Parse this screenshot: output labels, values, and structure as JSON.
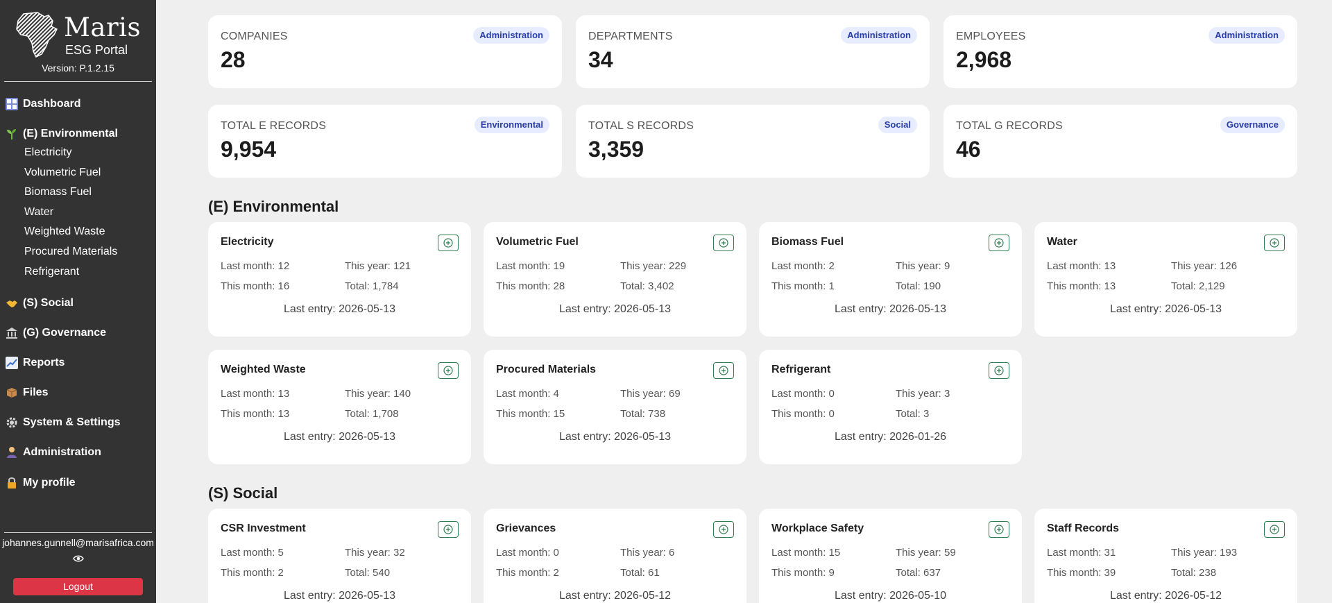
{
  "brand": {
    "name": "Maris",
    "subtitle": "ESG Portal",
    "version": "Version: P.1.2.15"
  },
  "nav": {
    "dashboard": "Dashboard",
    "environmental": "(E) Environmental",
    "env_items": [
      "Electricity",
      "Volumetric Fuel",
      "Biomass Fuel",
      "Water",
      "Weighted Waste",
      "Procured Materials",
      "Refrigerant"
    ],
    "social": "(S) Social",
    "governance": "(G) Governance",
    "reports": "Reports",
    "files": "Files",
    "settings": "System & Settings",
    "administration": "Administration",
    "profile": "My profile"
  },
  "user": {
    "email": "johannes.gunnell@marisafrica.com",
    "logout": "Logout"
  },
  "stats": [
    {
      "label": "COMPANIES",
      "value": "28",
      "badge": "Administration"
    },
    {
      "label": "DEPARTMENTS",
      "value": "34",
      "badge": "Administration"
    },
    {
      "label": "EMPLOYEES",
      "value": "2,968",
      "badge": "Administration"
    },
    {
      "label": "TOTAL E RECORDS",
      "value": "9,954",
      "badge": "Environmental"
    },
    {
      "label": "TOTAL S RECORDS",
      "value": "3,359",
      "badge": "Social"
    },
    {
      "label": "TOTAL G RECORDS",
      "value": "46",
      "badge": "Governance"
    }
  ],
  "sections": {
    "environmental": "(E) Environmental",
    "social": "(S) Social"
  },
  "env_cards": [
    {
      "title": "Electricity",
      "last_month": "Last month: 12",
      "this_year": "This year: 121",
      "this_month": "This month: 16",
      "total": "Total: 1,784",
      "last_entry": "Last entry: 2026-05-13"
    },
    {
      "title": "Volumetric Fuel",
      "last_month": "Last month: 19",
      "this_year": "This year: 229",
      "this_month": "This month: 28",
      "total": "Total: 3,402",
      "last_entry": "Last entry: 2026-05-13"
    },
    {
      "title": "Biomass Fuel",
      "last_month": "Last month: 2",
      "this_year": "This year: 9",
      "this_month": "This month: 1",
      "total": "Total: 190",
      "last_entry": "Last entry: 2026-05-13"
    },
    {
      "title": "Water",
      "last_month": "Last month: 13",
      "this_year": "This year: 126",
      "this_month": "This month: 13",
      "total": "Total: 2,129",
      "last_entry": "Last entry: 2026-05-13"
    },
    {
      "title": "Weighted Waste",
      "last_month": "Last month: 13",
      "this_year": "This year: 140",
      "this_month": "This month: 13",
      "total": "Total: 1,708",
      "last_entry": "Last entry: 2026-05-13"
    },
    {
      "title": "Procured Materials",
      "last_month": "Last month: 4",
      "this_year": "This year: 69",
      "this_month": "This month: 15",
      "total": "Total: 738",
      "last_entry": "Last entry: 2026-05-13"
    },
    {
      "title": "Refrigerant",
      "last_month": "Last month: 0",
      "this_year": "This year: 3",
      "this_month": "This month: 0",
      "total": "Total: 3",
      "last_entry": "Last entry: 2026-01-26"
    }
  ],
  "social_cards": [
    {
      "title": "CSR Investment",
      "last_month": "Last month: 5",
      "this_year": "This year: 32",
      "this_month": "This month: 2",
      "total": "Total: 540",
      "last_entry": "Last entry: 2026-05-13"
    },
    {
      "title": "Grievances",
      "last_month": "Last month: 0",
      "this_year": "This year: 6",
      "this_month": "This month: 2",
      "total": "Total: 61",
      "last_entry": "Last entry: 2026-05-12"
    },
    {
      "title": "Workplace Safety",
      "last_month": "Last month: 15",
      "this_year": "This year: 59",
      "this_month": "This month: 9",
      "total": "Total: 637",
      "last_entry": "Last entry: 2026-05-10"
    },
    {
      "title": "Staff Records",
      "last_month": "Last month: 31",
      "this_year": "This year: 193",
      "this_month": "This month: 39",
      "total": "Total: 238",
      "last_entry": "Last entry: 2026-05-12"
    }
  ],
  "colors": {
    "sidebar": "#333333",
    "logout": "#dc3545",
    "badge_bg": "#e7ecff",
    "badge_text": "#2a3ea8",
    "add_button": "#2e7d4f"
  },
  "icons": [
    "africa-logo-icon",
    "dashboard-icon",
    "seedling-icon",
    "handshake-icon",
    "bank-icon",
    "chart-icon",
    "package-icon",
    "gear-icon",
    "person-icon",
    "lock-icon",
    "eye-icon",
    "add-circle-icon"
  ]
}
